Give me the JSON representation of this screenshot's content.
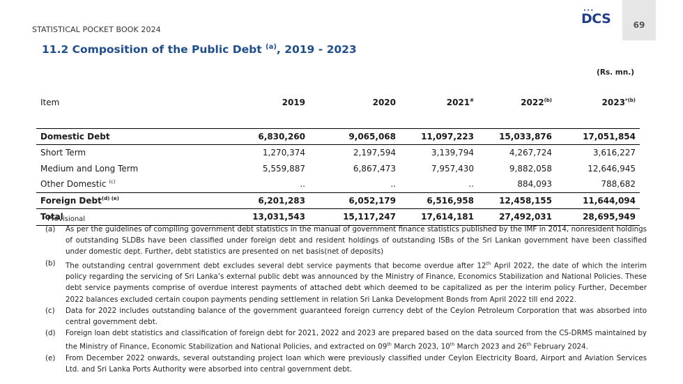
{
  "header": {
    "book_title": "STATISTICAL POCKET BOOK 2024",
    "logo_text": "DCS",
    "page_number": "69"
  },
  "section": {
    "title_main": "11.2  Composition of the Public Debt ",
    "title_sup": "(a)",
    "title_tail": ", 2019 - 2023",
    "unit": "(Rs. mn.)"
  },
  "table": {
    "item_header": "Item",
    "years": [
      {
        "label": "2019",
        "sup": ""
      },
      {
        "label": "2020",
        "sup": ""
      },
      {
        "label": "2021",
        "sup": "#"
      },
      {
        "label": "2022",
        "sup": "(b)"
      },
      {
        "label": "2023",
        "sup": "*(b)"
      }
    ],
    "rows": [
      {
        "label": "Domestic Debt",
        "sup": "",
        "values": [
          "6,830,260",
          "9,065,068",
          "11,097,223",
          "15,033,876",
          "17,051,854"
        ]
      },
      {
        "label": "Short Term",
        "sup": "",
        "values": [
          "1,270,374",
          "2,197,594",
          "3,139,794",
          "4,267,724",
          "3,616,227"
        ]
      },
      {
        "label": "Medium and Long Term",
        "sup": "",
        "values": [
          "5,559,887",
          "6,867,473",
          "7,957,430",
          "9,882,058",
          "12,646,945"
        ]
      },
      {
        "label": "Other Domestic ",
        "sup": "(c)",
        "values": [
          "..",
          "..",
          "..",
          "884,093",
          "788,682"
        ]
      },
      {
        "label": "Foreign Debt",
        "sup": "(d) (e)",
        "values": [
          "6,201,283",
          "6,052,179",
          "6,516,958",
          "12,458,155",
          "11,644,094"
        ]
      },
      {
        "label": "Total",
        "sup": "",
        "values": [
          "13,031,543",
          "15,117,247",
          "17,614,181",
          "27,492,031",
          "28,695,949"
        ]
      }
    ]
  },
  "notes": {
    "provisional": "* Provisional",
    "a_key": "(a)",
    "a_text": "As per the guidelines of compiling government debt statistics in the manual of government finance statistics published by the IMF in 2014, nonresident holdings of outstanding SLDBs have been classified under foreign debt and resident holdings of outstanding ISBs of the Sri Lankan government have been classified under domestic dept. Further, debt statistics are presented on net basis(net of deposits)",
    "b_key": "(b)",
    "b_text_1": "The outstanding central government debt excludes several debt service payments that become overdue after 12",
    "b_sup_1": "th",
    "b_text_2": " April 2022, the date of which the interim policy regarding the servicing of Sri Lanka’s external public debt was announced by the Ministry of Finance, Economics Stabilization and National Policies. These debt service payments comprise of overdue interest payments of attached debt which deemed to be capitalized as per the interim policy Further, December 2022 balances excluded certain coupon payments pending settlement in relation Sri Lanka Development Bonds from April 2022 till end 2022.",
    "c_key": "(c)",
    "c_text": "Data for 2022 includes outstanding balance of the government guaranteed foreign currency debt of the Ceylon Petroleum Corporation that was absorbed into central government debt.",
    "d_key": "(d)",
    "d_text_1": "Foreign loan debt statistics and classification of foreign debt for 2021, 2022 and 2023 are prepared based on the data sourced from the CS-DRMS maintained by the Ministry of Finance, Economic Stabilization and National Policies, and extracted on 09",
    "d_sup_1": "th",
    "d_text_2": " March 2023, 10",
    "d_sup_2": "th",
    "d_text_3": " March 2023 and 26",
    "d_sup_3": "th",
    "d_text_4": " February 2024.",
    "e_key": "(e)",
    "e_text": "From December 2022 onwards, several outstanding project loan which were previously classified under Ceylon Electricity Board, Airport and Aviation Services Ltd. and Sri Lanka Ports Authority were absorbed into central government debt."
  }
}
